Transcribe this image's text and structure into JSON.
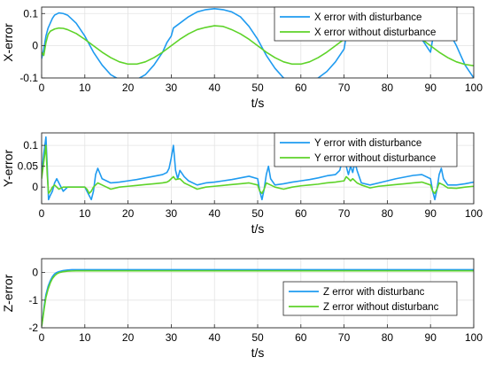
{
  "chart_data": [
    {
      "type": "line",
      "ylabel": "X-error",
      "xlabel": "t/s",
      "xlim": [
        0,
        100
      ],
      "ylim": [
        -0.1,
        0.12
      ],
      "xticks": [
        "0",
        "10",
        "20",
        "30",
        "40",
        "50",
        "60",
        "70",
        "80",
        "90",
        "100"
      ],
      "yticks": [
        "-0.1",
        "0",
        "0.1"
      ],
      "ytick_values": [
        -0.1,
        0,
        0.1
      ],
      "grid": true,
      "legend_position": "top-right",
      "series": [
        {
          "name": "X error with disturbance",
          "color": "#1f9bf0",
          "x": [
            0,
            0.5,
            1,
            1.5,
            2,
            2.5,
            3,
            4,
            5,
            6,
            8,
            10,
            12,
            14,
            16,
            18,
            20,
            22,
            24,
            26,
            28,
            29,
            30,
            30.5,
            31,
            32,
            34,
            36,
            38,
            40,
            42,
            44,
            46,
            48,
            50,
            52,
            54,
            56,
            58,
            60,
            62,
            64,
            66,
            68,
            70,
            70.5,
            71,
            72,
            74,
            76,
            78,
            80,
            82,
            84,
            86,
            88,
            90,
            90.5,
            91,
            92,
            94,
            96,
            98,
            100
          ],
          "y": [
            -0.04,
            -0.01,
            0.03,
            0.055,
            0.07,
            0.085,
            0.095,
            0.102,
            0.1,
            0.095,
            0.07,
            0.03,
            -0.02,
            -0.06,
            -0.09,
            -0.105,
            -0.11,
            -0.105,
            -0.09,
            -0.06,
            -0.02,
            0.01,
            0.03,
            0.055,
            0.06,
            0.07,
            0.09,
            0.105,
            0.112,
            0.115,
            0.112,
            0.105,
            0.09,
            0.06,
            0.02,
            -0.03,
            -0.07,
            -0.1,
            -0.11,
            -0.112,
            -0.11,
            -0.1,
            -0.08,
            -0.05,
            -0.01,
            0.03,
            0.06,
            0.085,
            0.102,
            0.11,
            0.113,
            0.112,
            0.105,
            0.09,
            0.06,
            0.02,
            -0.02,
            0.02,
            0.05,
            0.065,
            0.05,
            0.0,
            -0.06,
            -0.1
          ]
        },
        {
          "name": "X error without disturbance",
          "color": "#5ed329",
          "x": [
            0,
            0.5,
            1,
            1.5,
            2,
            3,
            4,
            5,
            6,
            8,
            10,
            12,
            14,
            16,
            18,
            20,
            22,
            24,
            26,
            28,
            30,
            32,
            34,
            36,
            38,
            40,
            42,
            44,
            46,
            48,
            50,
            52,
            54,
            56,
            58,
            60,
            62,
            64,
            66,
            68,
            70,
            72,
            74,
            76,
            78,
            80,
            82,
            84,
            86,
            88,
            90,
            92,
            94,
            96,
            98,
            100
          ],
          "y": [
            -0.02,
            -0.03,
            0.01,
            0.035,
            0.045,
            0.052,
            0.055,
            0.054,
            0.05,
            0.038,
            0.02,
            0.0,
            -0.02,
            -0.037,
            -0.05,
            -0.057,
            -0.057,
            -0.05,
            -0.037,
            -0.02,
            0.0,
            0.02,
            0.037,
            0.05,
            0.057,
            0.062,
            0.06,
            0.05,
            0.037,
            0.02,
            0.0,
            -0.02,
            -0.037,
            -0.05,
            -0.057,
            -0.057,
            -0.05,
            -0.037,
            -0.02,
            0.0,
            0.02,
            0.037,
            0.05,
            0.057,
            0.062,
            0.062,
            0.057,
            0.05,
            0.037,
            0.02,
            0.0,
            -0.02,
            -0.037,
            -0.05,
            -0.058,
            -0.062
          ]
        }
      ]
    },
    {
      "type": "line",
      "ylabel": "Y-error",
      "xlabel": "t/s",
      "xlim": [
        0,
        100
      ],
      "ylim": [
        -0.04,
        0.13
      ],
      "xticks": [
        "0",
        "10",
        "20",
        "30",
        "40",
        "50",
        "60",
        "70",
        "80",
        "90",
        "100"
      ],
      "yticks": [
        "0",
        "0.05",
        "0.1"
      ],
      "ytick_values": [
        0,
        0.05,
        0.1
      ],
      "grid": true,
      "legend_position": "top-right",
      "series": [
        {
          "name": "Y error with disturbance",
          "color": "#1f9bf0",
          "x": [
            0,
            0.5,
            1,
            1.3,
            1.6,
            2,
            2.5,
            3,
            3.5,
            4,
            5,
            6,
            7,
            8,
            9,
            10,
            10.5,
            11,
            11.5,
            12,
            12.5,
            13,
            14,
            16,
            18,
            20,
            22,
            24,
            26,
            28,
            29,
            29.5,
            30,
            30.5,
            31,
            31.5,
            32,
            33,
            34,
            36,
            38,
            40,
            42,
            44,
            46,
            48,
            50,
            50.5,
            51,
            51.5,
            52,
            52.5,
            53,
            54,
            56,
            58,
            60,
            62,
            64,
            66,
            68,
            69,
            69.5,
            70,
            70.5,
            71,
            71.5,
            72,
            72.5,
            73,
            74,
            76,
            78,
            80,
            82,
            84,
            86,
            88,
            90,
            90.5,
            91,
            91.5,
            92,
            92.5,
            93,
            94,
            96,
            98,
            100
          ],
          "y": [
            0.03,
            0.08,
            0.12,
            0.05,
            -0.03,
            -0.02,
            -0.01,
            0.01,
            0.02,
            0.01,
            -0.01,
            0.0,
            0.0,
            0.0,
            0.0,
            0.0,
            -0.01,
            -0.02,
            -0.03,
            -0.01,
            0.03,
            0.045,
            0.02,
            0.01,
            0.012,
            0.015,
            0.018,
            0.022,
            0.026,
            0.03,
            0.035,
            0.045,
            0.07,
            0.1,
            0.04,
            0.02,
            0.04,
            0.025,
            0.015,
            0.005,
            0.01,
            0.012,
            0.015,
            0.018,
            0.022,
            0.026,
            0.02,
            -0.01,
            -0.03,
            -0.005,
            0.03,
            0.05,
            0.02,
            0.005,
            0.008,
            0.012,
            0.015,
            0.018,
            0.022,
            0.027,
            0.03,
            0.04,
            0.06,
            0.085,
            0.05,
            0.03,
            0.05,
            0.035,
            0.06,
            0.04,
            0.01,
            0.005,
            0.01,
            0.015,
            0.02,
            0.024,
            0.028,
            0.03,
            0.02,
            -0.01,
            -0.03,
            -0.005,
            0.03,
            0.045,
            0.02,
            0.005,
            0.005,
            0.008,
            0.012
          ]
        },
        {
          "name": "Y error without disturbance",
          "color": "#5ed329",
          "x": [
            0,
            0.5,
            1,
            1.3,
            1.6,
            2,
            2.5,
            3,
            3.5,
            4,
            5,
            6,
            8,
            10,
            10.5,
            11,
            11.5,
            12,
            13,
            14,
            16,
            18,
            20,
            22,
            24,
            26,
            28,
            29,
            29.5,
            30,
            30.5,
            31,
            32,
            33,
            34,
            36,
            38,
            40,
            42,
            44,
            46,
            48,
            50,
            50.5,
            51,
            51.5,
            52,
            53,
            54,
            56,
            58,
            60,
            62,
            64,
            66,
            68,
            70,
            70.5,
            71,
            71.5,
            72,
            73,
            74,
            76,
            78,
            80,
            82,
            84,
            86,
            88,
            90,
            90.5,
            91,
            91.5,
            92,
            93,
            94,
            96,
            98,
            100
          ],
          "y": [
            0.02,
            0.06,
            0.1,
            0.03,
            -0.015,
            -0.01,
            0.0,
            0.005,
            0.0,
            -0.005,
            0.0,
            0.0,
            0.0,
            0.0,
            -0.005,
            -0.015,
            -0.01,
            0.0,
            0.01,
            0.005,
            -0.005,
            0.0,
            0.002,
            0.004,
            0.006,
            0.008,
            0.01,
            0.012,
            0.015,
            0.02,
            0.025,
            0.018,
            0.02,
            0.01,
            0.005,
            -0.005,
            0.0,
            0.002,
            0.004,
            0.006,
            0.008,
            0.01,
            0.005,
            -0.01,
            -0.015,
            -0.005,
            0.01,
            0.005,
            0.0,
            -0.005,
            0.0,
            0.003,
            0.005,
            0.007,
            0.01,
            0.012,
            0.015,
            0.025,
            0.02,
            0.015,
            0.02,
            0.01,
            0.005,
            -0.002,
            0.002,
            0.004,
            0.006,
            0.008,
            0.01,
            0.012,
            0.005,
            -0.01,
            -0.015,
            -0.005,
            0.01,
            0.005,
            -0.002,
            -0.003,
            0.0,
            0.002
          ]
        }
      ]
    },
    {
      "type": "line",
      "ylabel": "Z-error",
      "xlabel": "t/s",
      "xlim": [
        0,
        100
      ],
      "ylim": [
        -2,
        0.5
      ],
      "xticks": [
        "0",
        "10",
        "20",
        "30",
        "40",
        "50",
        "60",
        "70",
        "80",
        "90",
        "100"
      ],
      "yticks": [
        "-2",
        "-1",
        "0"
      ],
      "ytick_values": [
        -2,
        -1,
        0
      ],
      "grid": true,
      "legend_position": "bottom-right",
      "series": [
        {
          "name": "Z error with disturbanc",
          "color": "#1f9bf0",
          "x": [
            0,
            0.3,
            0.6,
            1,
            1.5,
            2,
            2.5,
            3,
            3.5,
            4,
            5,
            6,
            7,
            8,
            10,
            20,
            30,
            40,
            50,
            60,
            70,
            80,
            90,
            100
          ],
          "y": [
            -1.95,
            -1.6,
            -1.2,
            -0.8,
            -0.5,
            -0.3,
            -0.15,
            -0.05,
            0.0,
            0.03,
            0.07,
            0.09,
            0.1,
            0.1,
            0.1,
            0.1,
            0.1,
            0.1,
            0.1,
            0.1,
            0.1,
            0.1,
            0.1,
            0.1
          ]
        },
        {
          "name": "Z error without disturbanc",
          "color": "#5ed329",
          "x": [
            0,
            0.3,
            0.6,
            1,
            1.5,
            2,
            2.5,
            3,
            3.5,
            4,
            5,
            6,
            7,
            8,
            10,
            20,
            30,
            40,
            50,
            60,
            70,
            80,
            90,
            100
          ],
          "y": [
            -1.95,
            -1.65,
            -1.3,
            -0.9,
            -0.6,
            -0.38,
            -0.22,
            -0.12,
            -0.05,
            -0.01,
            0.03,
            0.05,
            0.055,
            0.06,
            0.06,
            0.06,
            0.06,
            0.06,
            0.06,
            0.06,
            0.06,
            0.06,
            0.06,
            0.06
          ]
        }
      ]
    }
  ]
}
